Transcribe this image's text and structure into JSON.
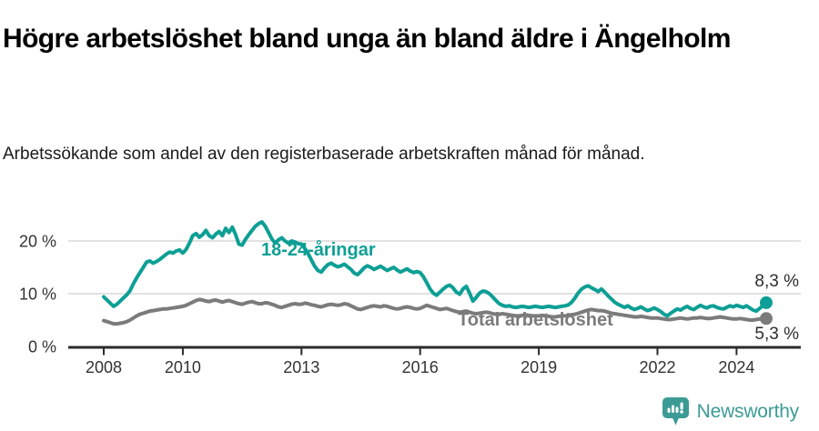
{
  "header": {
    "title": "Högre arbetslöshet bland unga än bland äldre i Ängelholm",
    "subtitle": "Arbetssökande som andel av den registerbaserade arbetskraften månad för månad."
  },
  "chart_data": {
    "type": "line",
    "title": "Högre arbetslöshet bland unga än bland äldre i Ängelholm",
    "unit": "%",
    "frequency": "monthly",
    "start": {
      "year": 2008,
      "month": 1
    },
    "end": {
      "year": 2024,
      "month": 10
    },
    "ylim": [
      0,
      25
    ],
    "grid": "horizontal",
    "legend_position": "inline-labels",
    "y_ticks": [
      {
        "value": 0,
        "label": "0 %"
      },
      {
        "value": 10,
        "label": "10 %"
      },
      {
        "value": 20,
        "label": "20 %"
      }
    ],
    "x_ticks": [
      {
        "year": 2008,
        "label": "2008"
      },
      {
        "year": 2010,
        "label": "2010"
      },
      {
        "year": 2013,
        "label": "2013"
      },
      {
        "year": 2016,
        "label": "2016"
      },
      {
        "year": 2019,
        "label": "2019"
      },
      {
        "year": 2022,
        "label": "2022"
      },
      {
        "year": 2024,
        "label": "2024"
      }
    ],
    "series": [
      {
        "name": "18-24-åringar",
        "color": "#0d9f95",
        "end_label": "8,3 %",
        "end_value": 8.3,
        "values": [
          9.4,
          8.8,
          8.2,
          7.6,
          8.0,
          8.6,
          9.2,
          9.8,
          10.6,
          11.9,
          13.0,
          14.0,
          15.0,
          16.0,
          16.2,
          15.8,
          16.1,
          16.5,
          17.0,
          17.5,
          17.9,
          17.7,
          18.1,
          18.3,
          17.7,
          18.4,
          19.6,
          21.0,
          21.4,
          20.7,
          21.2,
          22.0,
          21.0,
          20.6,
          21.3,
          21.8,
          21.0,
          22.4,
          21.6,
          22.6,
          21.2,
          19.4,
          19.2,
          20.3,
          21.2,
          22.0,
          22.8,
          23.3,
          23.6,
          22.8,
          21.6,
          20.4,
          19.6,
          20.2,
          20.6,
          20.0,
          19.6,
          20.0,
          19.8,
          19.5,
          19.4,
          18.6,
          17.6,
          16.4,
          15.2,
          14.4,
          14.1,
          14.9,
          15.5,
          15.8,
          15.4,
          15.1,
          15.3,
          15.6,
          15.1,
          14.6,
          13.9,
          13.6,
          14.2,
          14.9,
          15.3,
          15.0,
          14.6,
          14.9,
          15.2,
          14.8,
          14.4,
          14.7,
          15.0,
          14.5,
          14.1,
          14.4,
          14.7,
          14.3,
          14.0,
          14.2,
          14.0,
          13.2,
          12.1,
          10.9,
          10.1,
          9.7,
          10.3,
          10.9,
          11.4,
          11.6,
          11.1,
          10.3,
          9.9,
          10.9,
          11.4,
          10.1,
          8.6,
          9.3,
          10.1,
          10.5,
          10.4,
          10.0,
          9.4,
          8.7,
          8.1,
          7.8,
          7.6,
          7.7,
          7.5,
          7.4,
          7.5,
          7.6,
          7.5,
          7.4,
          7.5,
          7.6,
          7.5,
          7.4,
          7.5,
          7.6,
          7.5,
          7.4,
          7.5,
          7.6,
          7.7,
          7.9,
          8.4,
          9.2,
          10.2,
          10.9,
          11.3,
          11.5,
          11.1,
          10.8,
          10.4,
          10.9,
          10.3,
          9.6,
          9.0,
          8.4,
          8.0,
          7.7,
          7.4,
          7.7,
          7.3,
          7.0,
          7.2,
          7.5,
          7.1,
          6.8,
          7.0,
          7.3,
          7.0,
          6.6,
          6.1,
          5.8,
          6.3,
          6.7,
          7.1,
          6.9,
          7.3,
          7.6,
          7.2,
          7.0,
          7.4,
          7.8,
          7.5,
          7.3,
          7.6,
          7.7,
          7.4,
          7.2,
          7.1,
          7.4,
          7.7,
          7.5,
          7.8,
          7.6,
          7.4,
          7.7,
          7.3,
          6.9,
          6.7,
          7.2,
          7.8,
          8.3
        ]
      },
      {
        "name": "Total arbetslöshet",
        "color": "#7b7b7c",
        "end_label": "5,3 %",
        "end_value": 5.3,
        "values": [
          4.9,
          4.7,
          4.5,
          4.3,
          4.3,
          4.4,
          4.5,
          4.7,
          5.0,
          5.4,
          5.8,
          6.1,
          6.3,
          6.5,
          6.7,
          6.8,
          6.9,
          7.0,
          7.1,
          7.1,
          7.2,
          7.3,
          7.4,
          7.5,
          7.6,
          7.8,
          8.1,
          8.4,
          8.7,
          8.9,
          8.8,
          8.6,
          8.5,
          8.7,
          8.8,
          8.6,
          8.4,
          8.6,
          8.7,
          8.5,
          8.3,
          8.1,
          8.0,
          8.2,
          8.4,
          8.5,
          8.3,
          8.1,
          8.1,
          8.3,
          8.2,
          8.0,
          7.8,
          7.5,
          7.4,
          7.6,
          7.8,
          8.0,
          8.1,
          8.0,
          8.0,
          8.2,
          8.1,
          7.9,
          7.8,
          7.6,
          7.5,
          7.7,
          7.9,
          8.0,
          7.9,
          7.8,
          7.9,
          8.1,
          8.0,
          7.7,
          7.4,
          7.1,
          7.0,
          7.2,
          7.4,
          7.6,
          7.7,
          7.6,
          7.5,
          7.7,
          7.6,
          7.4,
          7.2,
          7.1,
          7.2,
          7.4,
          7.5,
          7.4,
          7.2,
          7.1,
          7.2,
          7.5,
          7.8,
          7.6,
          7.4,
          7.2,
          7.0,
          7.1,
          7.2,
          7.0,
          6.8,
          6.6,
          6.5,
          6.6,
          6.7,
          6.5,
          6.3,
          6.2,
          6.3,
          6.4,
          6.5,
          6.4,
          6.2,
          6.1,
          6.1,
          6.2,
          6.1,
          6.0,
          5.9,
          5.8,
          5.8,
          5.9,
          6.0,
          5.9,
          5.8,
          5.8,
          5.8,
          5.9,
          5.8,
          5.7,
          5.6,
          5.6,
          5.7,
          5.8,
          5.8,
          5.9,
          6.0,
          6.1,
          6.3,
          6.5,
          6.7,
          6.9,
          7.0,
          6.9,
          6.8,
          6.8,
          6.7,
          6.5,
          6.3,
          6.2,
          6.1,
          6.0,
          5.9,
          5.8,
          5.7,
          5.6,
          5.6,
          5.7,
          5.6,
          5.5,
          5.4,
          5.4,
          5.4,
          5.3,
          5.2,
          5.1,
          5.1,
          5.2,
          5.3,
          5.4,
          5.3,
          5.2,
          5.3,
          5.4,
          5.4,
          5.5,
          5.4,
          5.3,
          5.3,
          5.4,
          5.5,
          5.6,
          5.5,
          5.4,
          5.3,
          5.2,
          5.2,
          5.3,
          5.2,
          5.1,
          5.0,
          5.0,
          5.1,
          5.2,
          5.1,
          5.3
        ]
      }
    ]
  },
  "footer": {
    "brand": "Newsworthy"
  },
  "colors": {
    "accent_teal": "#0d9f95",
    "series_gray": "#7b7b7c",
    "grid": "#d9d9d9",
    "axis": "#2b2b2b",
    "brand_teal": "#3c9b95"
  }
}
